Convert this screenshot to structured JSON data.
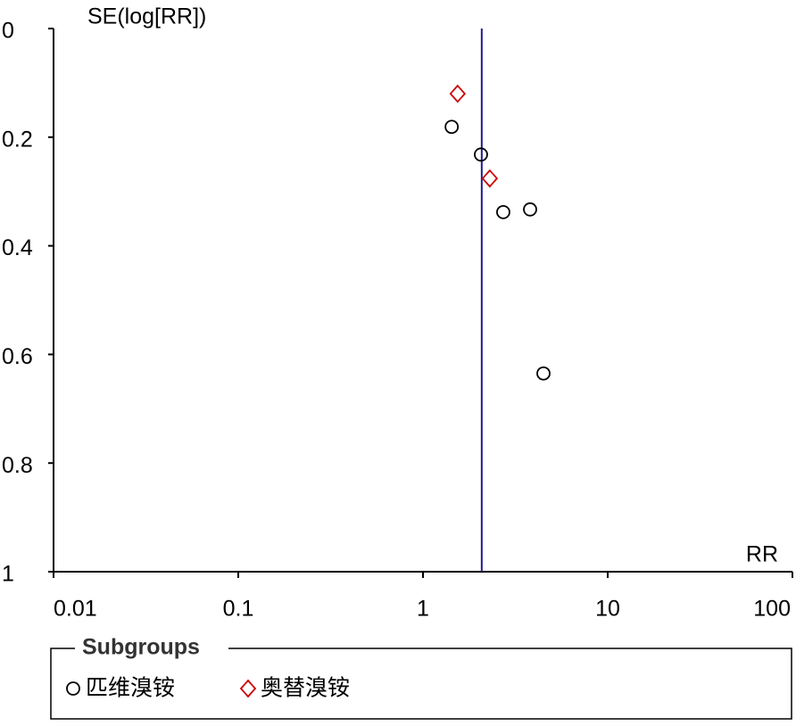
{
  "chart_data": {
    "type": "scatter",
    "y_label": "SE(log[RR])",
    "x_label": "RR",
    "x_scale": "log",
    "y_inverted": true,
    "xlim": [
      0.01,
      100
    ],
    "xticks": [
      0.01,
      0.1,
      1,
      10,
      100
    ],
    "ylim": [
      0,
      1
    ],
    "yticks": [
      0,
      0.2,
      0.4,
      0.6,
      0.8,
      1
    ],
    "reference_line": {
      "x": 2.08,
      "color": "#1f1f8f"
    },
    "legend_title": "Subgroups",
    "series": [
      {
        "name": "匹维溴铵",
        "color": "#000000",
        "marker": "circle",
        "x": [
          1.43,
          2.06,
          2.72,
          3.8,
          4.49
        ],
        "values": [
          0.181,
          0.232,
          0.338,
          0.333,
          0.635
        ]
      },
      {
        "name": "奥替溴铵",
        "color": "#cc0000",
        "marker": "diamond",
        "x": [
          1.54,
          2.3
        ],
        "values": [
          0.12,
          0.276
        ]
      }
    ]
  }
}
